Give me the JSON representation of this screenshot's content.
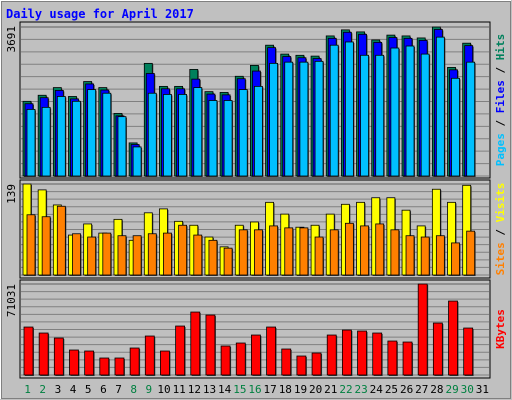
{
  "chart_data": [
    {
      "type": "bar",
      "title": "Daily usage for April 2017",
      "ylim": [
        0,
        3691
      ],
      "yticks": [
        3691
      ],
      "label_separator": "/",
      "series": [
        {
          "name": "Hits",
          "color": "#00805c",
          "values": [
            1850,
            2000,
            2190,
            1970,
            2340,
            2190,
            1550,
            820,
            2790,
            2220,
            2220,
            2640,
            2090,
            2070,
            2470,
            2740,
            3240,
            3020,
            2990,
            2970,
            3470,
            3620,
            3570,
            3370,
            3490,
            3470,
            3420,
            3691,
            2690,
            3290,
            null
          ]
        },
        {
          "name": "Files",
          "color": "#0000ff",
          "values": [
            1790,
            1940,
            2120,
            1910,
            2280,
            2130,
            1490,
            780,
            2540,
            2160,
            2160,
            2400,
            2030,
            2010,
            2410,
            2600,
            3180,
            2960,
            2930,
            2910,
            3410,
            3560,
            3510,
            3310,
            3430,
            3410,
            3360,
            3630,
            2630,
            3230,
            null
          ]
        },
        {
          "name": "Pages",
          "color": "#00c0ff",
          "values": [
            1650,
            1700,
            1970,
            1850,
            2140,
            2050,
            1470,
            720,
            2050,
            2020,
            2020,
            2190,
            1870,
            1870,
            2140,
            2220,
            2790,
            2820,
            2820,
            2840,
            3240,
            3320,
            2990,
            2990,
            3170,
            3220,
            3020,
            3440,
            2420,
            2820,
            null
          ]
        }
      ]
    },
    {
      "type": "bar",
      "ylim": [
        0,
        139
      ],
      "yticks": [
        139
      ],
      "label_separator": "/",
      "series": [
        {
          "name": "Visits",
          "color": "#ffff00",
          "values": [
            139,
            130,
            107,
            61,
            78,
            64,
            85,
            53,
            95,
            101,
            82,
            76,
            58,
            43,
            76,
            81,
            111,
            93,
            73,
            76,
            93,
            108,
            111,
            118,
            118,
            99,
            75,
            131,
            111,
            137,
            null
          ]
        },
        {
          "name": "Sites",
          "color": "#ff8000",
          "values": [
            92,
            89,
            105,
            63,
            58,
            64,
            60,
            60,
            63,
            64,
            76,
            61,
            53,
            41,
            69,
            69,
            75,
            72,
            72,
            58,
            69,
            79,
            75,
            78,
            69,
            60,
            58,
            60,
            49,
            67,
            null
          ]
        }
      ]
    },
    {
      "type": "bar",
      "ylim": [
        0,
        71031
      ],
      "yticks": [
        71031
      ],
      "categories": [
        "1",
        "2",
        "3",
        "4",
        "5",
        "6",
        "7",
        "8",
        "9",
        "10",
        "11",
        "12",
        "13",
        "14",
        "15",
        "16",
        "17",
        "18",
        "19",
        "20",
        "21",
        "22",
        "23",
        "24",
        "25",
        "26",
        "27",
        "28",
        "29",
        "30",
        "31"
      ],
      "category_colors": [
        "#008040",
        "#008040",
        "#000000",
        "#000000",
        "#000000",
        "#000000",
        "#000000",
        "#008040",
        "#008040",
        "#000000",
        "#000000",
        "#000000",
        "#000000",
        "#000000",
        "#008040",
        "#008040",
        "#000000",
        "#000000",
        "#000000",
        "#000000",
        "#000000",
        "#008040",
        "#008040",
        "#000000",
        "#000000",
        "#000000",
        "#000000",
        "#000000",
        "#008040",
        "#008040",
        "#000000"
      ],
      "series": [
        {
          "name": "KBytes",
          "color": "#ff0000",
          "values": [
            37440,
            32760,
            28860,
            19500,
            18720,
            13260,
            13260,
            21060,
            30420,
            18720,
            38220,
            49140,
            46800,
            22620,
            24960,
            31200,
            37440,
            20280,
            14820,
            17160,
            31200,
            35100,
            34320,
            32760,
            26520,
            25740,
            71031,
            40560,
            57720,
            36660,
            null
          ]
        }
      ]
    }
  ]
}
